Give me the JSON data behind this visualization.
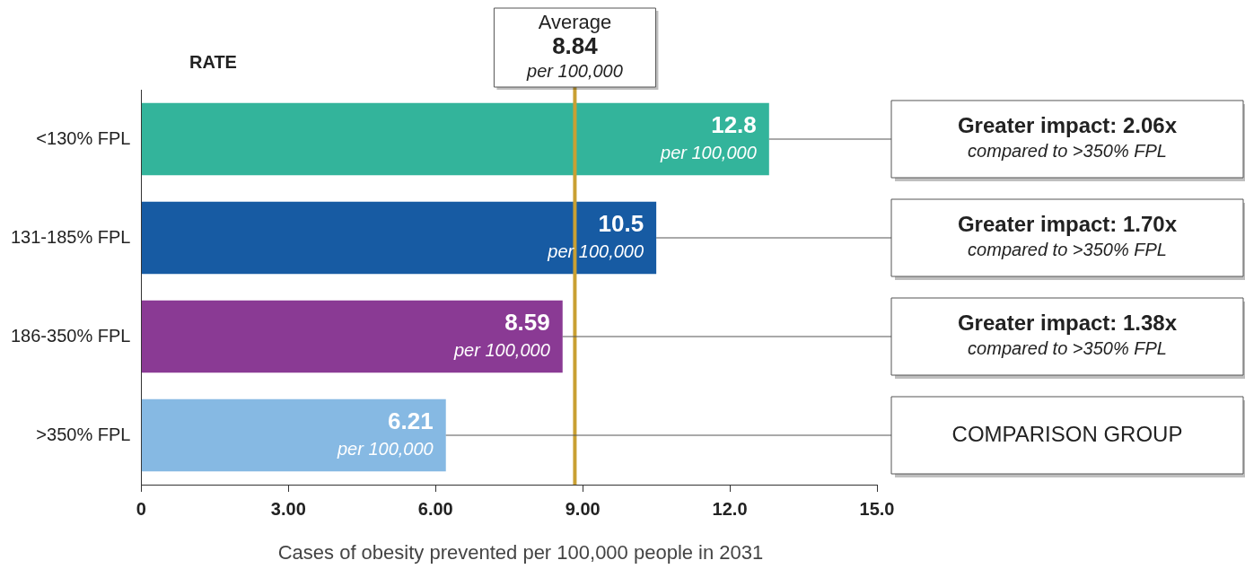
{
  "chart_data": {
    "type": "bar",
    "orientation": "horizontal",
    "ylabel": "RATE",
    "xlabel": "Cases of obesity prevented per 100,000 people in 2031",
    "categories": [
      "<130% FPL",
      "131-185% FPL",
      "186-350% FPL",
      ">350% FPL"
    ],
    "values": [
      12.8,
      10.5,
      8.59,
      6.21
    ],
    "colors": [
      "#33b49b",
      "#175ba3",
      "#8a3a94",
      "#86b9e3"
    ],
    "value_labels": [
      "12.8\nper 100,000",
      "10.5\nper 100,000",
      "8.59\nper 100,000",
      "6.21\nper 100,000"
    ],
    "xlim": [
      0,
      15
    ],
    "xticks": [
      0,
      {
        "value": 3,
        "label": "3.00"
      },
      {
        "value": 6,
        "label": "6.00"
      },
      {
        "value": 9,
        "label": "9.00"
      },
      {
        "value": 12,
        "label": "12.0"
      },
      {
        "value": 15,
        "label": "15.0"
      }
    ],
    "ref_lines": [
      {
        "axis": "x",
        "value": 8.84,
        "label": "Average\n8.84\nper 100,000",
        "color": "#c9a033"
      }
    ],
    "annotations": [
      "Greater impact: 2.06x\ncompared to >350% FPL",
      "Greater impact: 1.70x\ncompared to >350% FPL",
      "Greater impact: 1.38x\ncompared to >350% FPL",
      "COMPARISON GROUP"
    ],
    "legend": false
  }
}
